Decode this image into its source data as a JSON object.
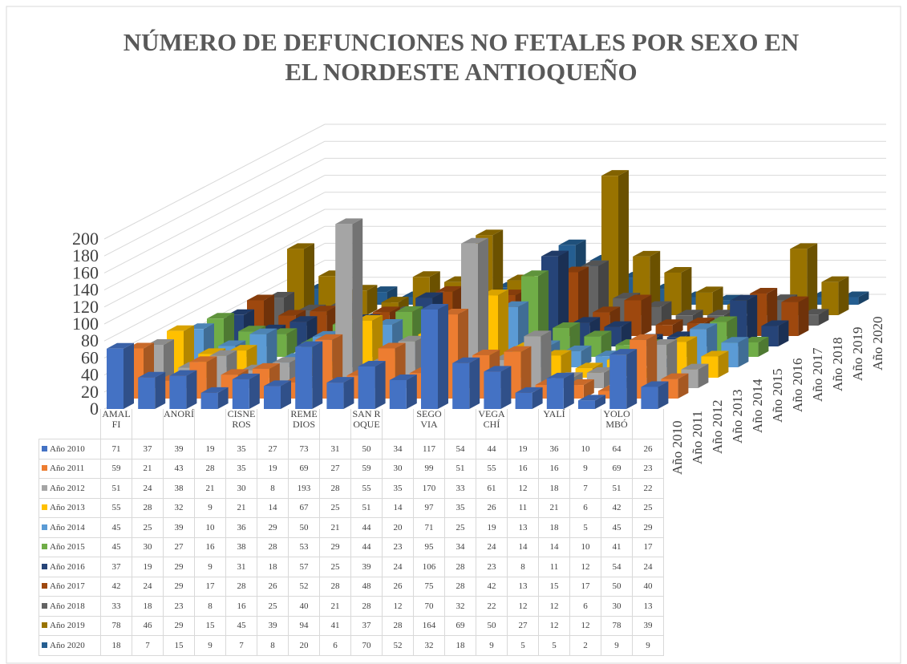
{
  "chart_data": {
    "type": "bar3d",
    "title": "NÚMERO DE DEFUNCIONES NO FETALES POR SEXO EN EL NORDESTE ANTIOQUEÑO",
    "categories": [
      "AMALFI",
      null,
      "ANORÍ",
      null,
      "CISNEROS",
      null,
      "REMEDIOS",
      null,
      "SAN ROQUE",
      null,
      "SEGOVIA",
      null,
      "VEGACHÍ",
      null,
      "YALÍ",
      null,
      "YOLOMBÓ",
      null
    ],
    "ylim": [
      0,
      200
    ],
    "yticks": [
      0,
      20,
      40,
      60,
      80,
      100,
      120,
      140,
      160,
      180,
      200
    ],
    "grid": true,
    "series": [
      {
        "name": "Año 2010",
        "color": "#4472c4",
        "values": [
          71,
          37,
          39,
          19,
          35,
          27,
          73,
          31,
          50,
          34,
          117,
          54,
          44,
          19,
          36,
          10,
          64,
          26
        ]
      },
      {
        "name": "Año 2011",
        "color": "#ed7d31",
        "values": [
          59,
          21,
          43,
          28,
          35,
          19,
          69,
          27,
          59,
          30,
          99,
          51,
          55,
          16,
          16,
          9,
          69,
          23
        ]
      },
      {
        "name": "Año 2012",
        "color": "#a5a5a5",
        "values": [
          51,
          24,
          38,
          21,
          30,
          8,
          193,
          28,
          55,
          35,
          170,
          33,
          61,
          12,
          18,
          7,
          51,
          22
        ]
      },
      {
        "name": "Año 2013",
        "color": "#ffc000",
        "values": [
          55,
          28,
          32,
          9,
          21,
          14,
          67,
          25,
          51,
          14,
          97,
          35,
          26,
          11,
          21,
          6,
          42,
          25
        ]
      },
      {
        "name": "Año 2014",
        "color": "#5b9bd5",
        "values": [
          45,
          25,
          39,
          10,
          36,
          29,
          50,
          21,
          44,
          20,
          71,
          25,
          19,
          13,
          18,
          5,
          45,
          29
        ]
      },
      {
        "name": "Año 2015",
        "color": "#70ad47",
        "values": [
          45,
          30,
          27,
          16,
          38,
          28,
          53,
          29,
          44,
          23,
          95,
          34,
          24,
          14,
          14,
          10,
          41,
          17
        ]
      },
      {
        "name": "Año 2016",
        "color": "#264478",
        "values": [
          37,
          19,
          29,
          9,
          31,
          18,
          57,
          25,
          39,
          24,
          106,
          28,
          23,
          8,
          11,
          12,
          54,
          24
        ]
      },
      {
        "name": "Año 2017",
        "color": "#9e480e",
        "values": [
          42,
          24,
          29,
          17,
          28,
          26,
          52,
          28,
          48,
          26,
          75,
          28,
          42,
          13,
          15,
          17,
          50,
          40
        ]
      },
      {
        "name": "Año 2018",
        "color": "#636363",
        "values": [
          33,
          18,
          23,
          8,
          16,
          25,
          40,
          21,
          28,
          12,
          70,
          32,
          22,
          12,
          12,
          6,
          30,
          13
        ]
      },
      {
        "name": "Año 2019",
        "color": "#997300",
        "values": [
          78,
          46,
          29,
          15,
          45,
          39,
          94,
          41,
          37,
          28,
          164,
          69,
          50,
          27,
          12,
          12,
          78,
          39
        ]
      },
      {
        "name": "Año 2020",
        "color": "#255e91",
        "values": [
          18,
          7,
          15,
          9,
          7,
          8,
          20,
          6,
          70,
          52,
          32,
          18,
          9,
          5,
          5,
          2,
          9,
          9
        ]
      }
    ]
  }
}
